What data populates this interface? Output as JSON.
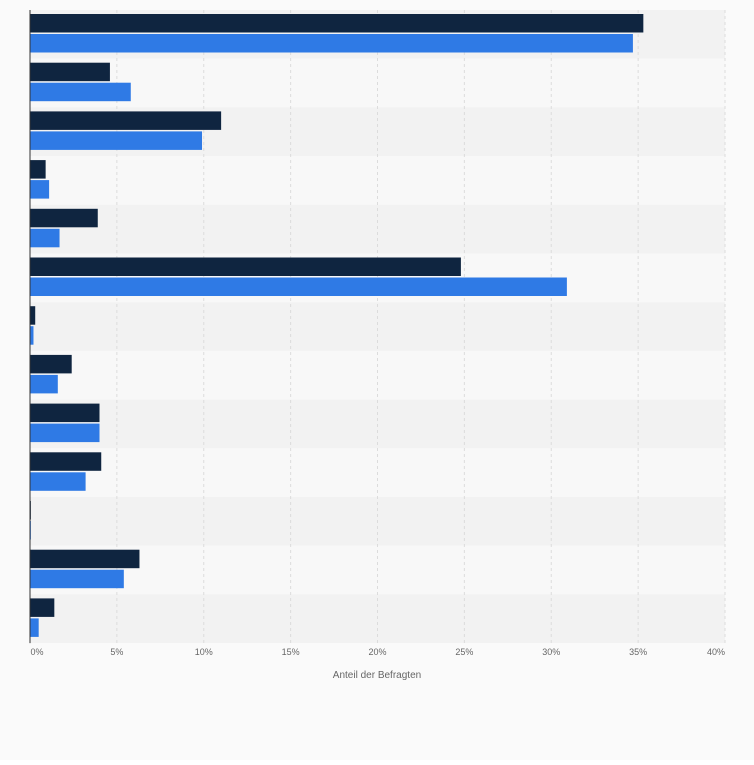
{
  "chart_data": {
    "type": "bar",
    "orientation": "horizontal",
    "categories": [
      "",
      "",
      "",
      "",
      "",
      "",
      "",
      "",
      "",
      "",
      "",
      "",
      ""
    ],
    "series": [
      {
        "color": "#0f2540",
        "values": [
          35.3,
          4.6,
          11.0,
          0.9,
          3.9,
          24.8,
          0.3,
          2.4,
          4.0,
          4.1,
          0.05,
          6.3,
          1.4
        ]
      },
      {
        "color": "#2f7ae5",
        "values": [
          34.7,
          5.8,
          9.9,
          1.1,
          1.7,
          30.9,
          0.2,
          1.6,
          4.0,
          3.2,
          0.05,
          5.4,
          0.5
        ]
      }
    ],
    "xlim": [
      0,
      40
    ],
    "xticks": [
      "0%",
      "5%",
      "10%",
      "15%",
      "20%",
      "25%",
      "30%",
      "35%",
      "40%"
    ],
    "xlabel": "Anteil der Befragten",
    "ylabel": "",
    "grid": true
  }
}
